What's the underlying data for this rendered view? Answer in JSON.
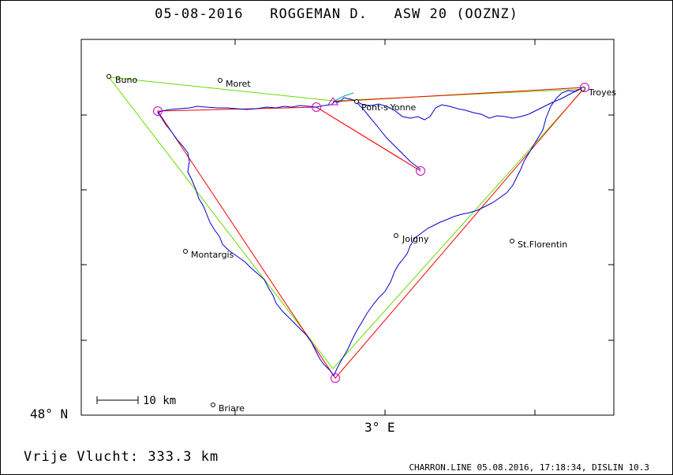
{
  "header": {
    "date": "05-08-2016",
    "pilot": "ROGGEMAN D.",
    "glider": "ASW 20 (OOZNZ)"
  },
  "axes": {
    "lat_label": "48° N",
    "lon_label": "3° E"
  },
  "scale_bar": {
    "label": "10 km"
  },
  "towns": [
    {
      "name": "Buno"
    },
    {
      "name": "Moret"
    },
    {
      "name": "Pont-s-Yonne"
    },
    {
      "name": "Troyes"
    },
    {
      "name": "Montargis"
    },
    {
      "name": "Joigny"
    },
    {
      "name": "St.Florentin"
    },
    {
      "name": "Briare"
    }
  ],
  "footer": {
    "label": "Vrije Vlucht:",
    "distance": "333.3 km",
    "info": "CHARRON.LINE 05.08.2016, 17:18:34, DISLIN 10.3"
  },
  "colors": {
    "track": "#0000cc",
    "task": "#ff0000",
    "optimized": "#66dd00",
    "turnpoint": "#cc00cc"
  }
}
